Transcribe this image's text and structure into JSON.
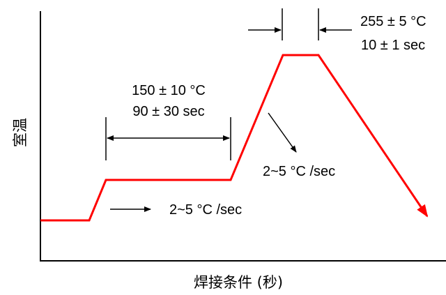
{
  "y_axis_label": "室温",
  "x_axis_label": "焊接条件 (秒)",
  "annotations": {
    "preheat_temp": "150 ± 10 °C",
    "preheat_time": "90 ± 30 sec",
    "ramp_up_rate": "2~5 °C /sec",
    "ramp_down_rate": "2~5 °C /sec",
    "peak_temp": "255 ± 5 °C",
    "peak_time": "10 ± 1 sec"
  },
  "colors": {
    "profile_line": "#ff0000",
    "axis": "#000000",
    "annotation": "#000000"
  }
}
